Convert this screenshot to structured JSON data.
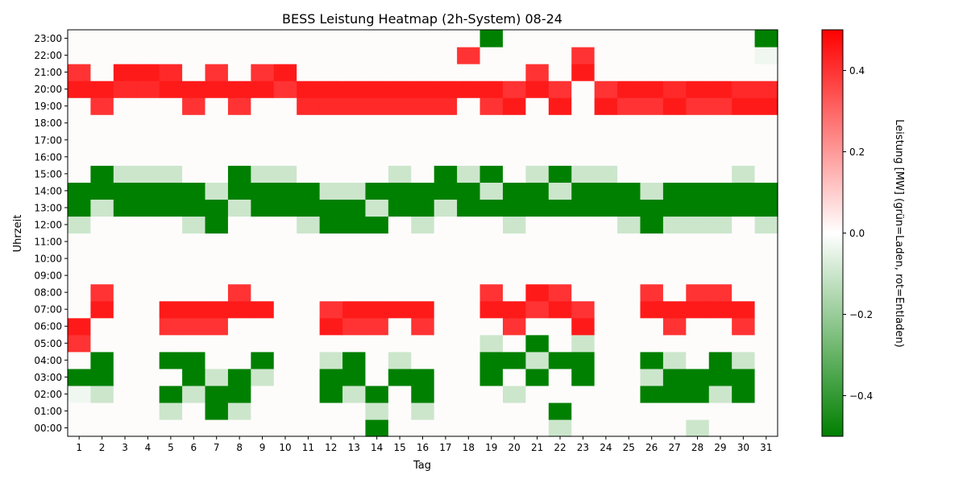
{
  "chart_data": {
    "type": "heatmap",
    "title": "BESS Leistung Heatmap (2h-System) 08-24",
    "xlabel": "Tag",
    "ylabel": "Uhrzeit",
    "x": [
      "1",
      "2",
      "3",
      "4",
      "5",
      "6",
      "7",
      "8",
      "9",
      "10",
      "11",
      "12",
      "13",
      "14",
      "15",
      "16",
      "17",
      "18",
      "19",
      "20",
      "21",
      "22",
      "23",
      "24",
      "25",
      "26",
      "27",
      "28",
      "29",
      "30",
      "31"
    ],
    "y": [
      "00:00",
      "01:00",
      "02:00",
      "03:00",
      "04:00",
      "05:00",
      "06:00",
      "07:00",
      "08:00",
      "09:00",
      "10:00",
      "11:00",
      "12:00",
      "13:00",
      "14:00",
      "15:00",
      "16:00",
      "17:00",
      "18:00",
      "19:00",
      "20:00",
      "21:00",
      "22:00",
      "23:00"
    ],
    "colorbar": {
      "label": "Leistung [MW] (grün=Laden, rot=Entladen)",
      "min": -0.5,
      "max": 0.5,
      "ticks": [
        -0.4,
        -0.2,
        0.0,
        0.2,
        0.4
      ],
      "tick_labels": [
        "−0.4",
        "−0.2",
        "0.0",
        "0.2",
        "0.4"
      ],
      "colors": [
        "#008000",
        "#ffffff",
        "#ff0000"
      ]
    },
    "grid": false,
    "values": [
      [
        0,
        0,
        0,
        0,
        0,
        0,
        0,
        0,
        0,
        0,
        0,
        0,
        0,
        -0.5,
        0,
        0,
        0,
        0,
        0,
        0,
        0,
        -0.1,
        0,
        0,
        0,
        0,
        0,
        -0.1,
        0,
        0,
        0
      ],
      [
        0,
        0,
        0,
        0,
        -0.1,
        0,
        -0.5,
        -0.1,
        0,
        0,
        0,
        0,
        0,
        -0.1,
        0,
        -0.1,
        0,
        0,
        0,
        0,
        0,
        -0.5,
        0,
        0,
        0,
        0,
        0,
        0,
        0,
        0,
        0
      ],
      [
        -0.03,
        -0.1,
        0,
        0,
        -0.5,
        -0.1,
        -0.5,
        -0.5,
        0,
        0,
        0,
        -0.5,
        -0.1,
        -0.5,
        0,
        -0.5,
        0,
        0,
        0,
        -0.1,
        0,
        0,
        0,
        0,
        0,
        -0.5,
        -0.5,
        -0.5,
        -0.1,
        -0.5,
        0
      ],
      [
        -0.5,
        -0.5,
        0,
        0,
        0,
        -0.5,
        -0.1,
        -0.5,
        -0.1,
        0,
        0,
        -0.5,
        -0.5,
        0,
        -0.5,
        -0.5,
        0,
        0,
        -0.5,
        0,
        -0.5,
        0,
        -0.5,
        0,
        0,
        -0.1,
        -0.5,
        -0.5,
        -0.5,
        -0.5,
        0
      ],
      [
        0,
        -0.5,
        0,
        0,
        -0.5,
        -0.5,
        0,
        0,
        -0.5,
        0,
        0,
        -0.1,
        -0.5,
        0,
        -0.1,
        0,
        0,
        0,
        -0.5,
        -0.5,
        -0.1,
        -0.5,
        -0.5,
        0,
        0,
        -0.5,
        -0.1,
        0,
        -0.5,
        -0.1,
        0
      ],
      [
        0.4,
        0,
        0,
        0,
        0,
        0,
        0,
        0,
        0,
        0,
        0,
        0,
        0,
        0,
        0,
        0,
        0,
        0,
        -0.1,
        0,
        -0.5,
        0,
        -0.1,
        0,
        0,
        0,
        0,
        0,
        0,
        0,
        0
      ],
      [
        0.45,
        0,
        0,
        0,
        0.4,
        0.4,
        0.4,
        0,
        0,
        0,
        0,
        0.45,
        0.4,
        0.4,
        0,
        0.4,
        0,
        0,
        0,
        0.4,
        0,
        0,
        0.45,
        0,
        0,
        0,
        0.4,
        0,
        0,
        0.4,
        0
      ],
      [
        0,
        0.45,
        0,
        0,
        0.45,
        0.45,
        0.45,
        0.45,
        0.45,
        0,
        0,
        0.4,
        0.45,
        0.45,
        0.45,
        0.45,
        0,
        0,
        0.45,
        0.45,
        0.4,
        0.45,
        0.4,
        0,
        0,
        0.45,
        0.45,
        0.45,
        0.45,
        0.45,
        0
      ],
      [
        0,
        0.4,
        0,
        0,
        0,
        0,
        0,
        0.4,
        0,
        0,
        0,
        0,
        0,
        0,
        0,
        0,
        0,
        0,
        0.4,
        0,
        0.45,
        0.4,
        0,
        0,
        0,
        0.4,
        0,
        0.4,
        0.4,
        0,
        0
      ],
      [
        0,
        0,
        0,
        0,
        0,
        0,
        0,
        0,
        0,
        0,
        0,
        0,
        0,
        0,
        0,
        0,
        0,
        0,
        0,
        0,
        0,
        0,
        0,
        0,
        0,
        0,
        0,
        0,
        0,
        0,
        0
      ],
      [
        0,
        0,
        0,
        0,
        0,
        0,
        0,
        0,
        0,
        0,
        0,
        0,
        0,
        0,
        0,
        0,
        0,
        0,
        0,
        0,
        0,
        0,
        0,
        0,
        0,
        0,
        0,
        0,
        0,
        0,
        0
      ],
      [
        0,
        0,
        0,
        0,
        0,
        0,
        0,
        0,
        0,
        0,
        0,
        0,
        0,
        0,
        0,
        0,
        0,
        0,
        0,
        0,
        0,
        0,
        0,
        0,
        0,
        0,
        0,
        0,
        0,
        0,
        0
      ],
      [
        -0.1,
        0,
        0,
        0,
        0,
        -0.1,
        -0.5,
        0,
        0,
        0,
        -0.1,
        -0.5,
        -0.5,
        -0.5,
        0,
        -0.1,
        0,
        0,
        0,
        -0.1,
        0,
        0,
        0,
        0,
        -0.1,
        -0.5,
        -0.1,
        -0.1,
        -0.1,
        0,
        -0.1
      ],
      [
        -0.5,
        -0.1,
        -0.5,
        -0.5,
        -0.5,
        -0.5,
        -0.5,
        -0.1,
        -0.5,
        -0.5,
        -0.5,
        -0.5,
        -0.5,
        -0.1,
        -0.5,
        -0.5,
        -0.1,
        -0.5,
        -0.5,
        -0.5,
        -0.5,
        -0.5,
        -0.5,
        -0.5,
        -0.5,
        -0.5,
        -0.5,
        -0.5,
        -0.5,
        -0.5,
        -0.5
      ],
      [
        -0.5,
        -0.5,
        -0.5,
        -0.5,
        -0.5,
        -0.5,
        -0.1,
        -0.5,
        -0.5,
        -0.5,
        -0.5,
        -0.1,
        -0.1,
        -0.5,
        -0.5,
        -0.5,
        -0.5,
        -0.5,
        -0.1,
        -0.5,
        -0.5,
        -0.1,
        -0.5,
        -0.5,
        -0.5,
        -0.1,
        -0.5,
        -0.5,
        -0.5,
        -0.5,
        -0.5
      ],
      [
        0,
        -0.5,
        -0.1,
        -0.1,
        -0.1,
        0,
        0,
        -0.5,
        -0.1,
        -0.1,
        0,
        0,
        0,
        0,
        -0.1,
        0,
        -0.5,
        -0.1,
        -0.5,
        0,
        -0.1,
        -0.5,
        -0.1,
        -0.1,
        0,
        0,
        0,
        0,
        0,
        -0.1,
        0
      ],
      [
        0,
        0,
        0,
        0,
        0,
        0,
        0,
        0,
        0,
        0,
        0,
        0,
        0,
        0,
        0,
        0,
        0,
        0,
        0,
        0,
        0,
        0,
        0,
        0,
        0,
        0,
        0,
        0,
        0,
        0,
        0
      ],
      [
        0,
        0,
        0,
        0,
        0,
        0,
        0,
        0,
        0,
        0,
        0,
        0,
        0,
        0,
        0,
        0,
        0,
        0,
        0,
        0,
        0,
        0,
        0,
        0,
        0,
        0,
        0,
        0,
        0,
        0,
        0
      ],
      [
        0,
        0,
        0,
        0,
        0,
        0,
        0,
        0,
        0,
        0,
        0,
        0,
        0,
        0,
        0,
        0,
        0,
        0,
        0,
        0,
        0,
        0,
        0,
        0,
        0,
        0,
        0,
        0,
        0,
        0,
        0
      ],
      [
        0,
        0.4,
        0,
        0,
        0,
        0.4,
        0,
        0.4,
        0,
        0,
        0.42,
        0.42,
        0.42,
        0.42,
        0.42,
        0.42,
        0.42,
        0,
        0.4,
        0.45,
        0,
        0.45,
        0,
        0.45,
        0.4,
        0.4,
        0.45,
        0.4,
        0.4,
        0.45,
        0.45
      ],
      [
        0.45,
        0.45,
        0.42,
        0.42,
        0.45,
        0.45,
        0.45,
        0.45,
        0.45,
        0.4,
        0.45,
        0.45,
        0.45,
        0.45,
        0.45,
        0.45,
        0.45,
        0.45,
        0.45,
        0.4,
        0.45,
        0.4,
        0,
        0.4,
        0.45,
        0.45,
        0.42,
        0.45,
        0.45,
        0.42,
        0.42
      ],
      [
        0.4,
        0,
        0.45,
        0.45,
        0.42,
        0,
        0.4,
        0,
        0.4,
        0.45,
        0,
        0,
        0,
        0,
        0,
        0,
        0,
        0,
        0,
        0,
        0.4,
        0,
        0.45,
        0,
        0,
        0,
        0,
        0,
        0,
        0,
        0
      ],
      [
        0,
        0,
        0,
        0,
        0,
        0,
        0,
        0,
        0,
        0,
        0,
        0,
        0,
        0,
        0,
        0,
        0,
        0.4,
        0,
        0,
        0,
        0,
        0.4,
        0,
        0,
        0,
        0,
        0,
        0,
        0,
        -0.03
      ],
      [
        0,
        0,
        0,
        0,
        0,
        0,
        0,
        0,
        0,
        0,
        0,
        0,
        0,
        0,
        0,
        0,
        0,
        0,
        -0.5,
        0,
        0,
        0,
        0,
        0,
        0,
        0,
        0,
        0,
        0,
        0,
        -0.5
      ]
    ]
  }
}
